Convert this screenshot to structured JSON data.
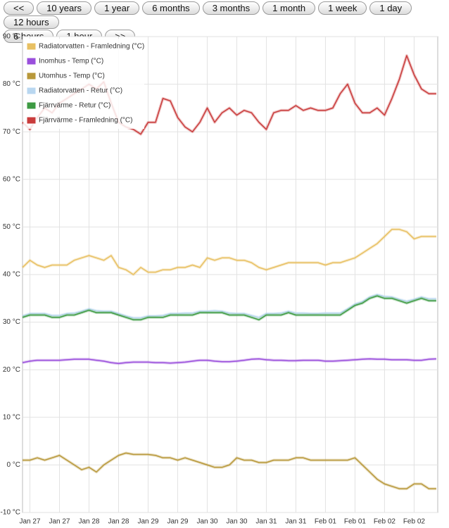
{
  "buttons": [
    "<<",
    "10 years",
    "1 year",
    "6 months",
    "3 months",
    "1 month",
    "1 week",
    "1 day",
    "12 hours",
    "6 hours",
    "1 hour",
    ">>"
  ],
  "chart_data": {
    "type": "line",
    "categories": [
      null,
      "Jan 27",
      null,
      null,
      null,
      "Jan 27",
      null,
      null,
      null,
      "Jan 28",
      null,
      null,
      null,
      "Jan 28",
      null,
      null,
      null,
      "Jan 29",
      null,
      null,
      null,
      "Jan 29",
      null,
      null,
      null,
      "Jan 30",
      null,
      null,
      null,
      "Jan 30",
      null,
      null,
      null,
      "Jan 31",
      null,
      null,
      null,
      "Jan 31",
      null,
      null,
      null,
      "Feb 01",
      null,
      null,
      null,
      "Feb 01",
      null,
      null,
      null,
      "Feb 02",
      null,
      null,
      null,
      "Feb 02",
      null,
      null,
      null
    ],
    "series": [
      {
        "name": "Radiatorvatten - Framledning (°C)",
        "color": "#e8c062",
        "values": [
          41.5,
          43,
          42,
          41.5,
          42,
          42,
          42,
          43,
          43.5,
          44,
          43.5,
          43,
          44,
          41.5,
          41,
          40,
          41.5,
          40.5,
          40.5,
          41,
          41,
          41.5,
          41.5,
          42,
          41.5,
          43.5,
          43,
          43.5,
          43.5,
          43,
          43,
          42.5,
          41.5,
          41,
          41.5,
          42,
          42.5,
          42.5,
          42.5,
          42.5,
          42.5,
          42,
          42.5,
          42.5,
          43,
          43.5,
          44.5,
          45.5,
          46.5,
          48,
          49.5,
          49.5,
          49,
          47.5,
          48,
          48,
          48
        ]
      },
      {
        "name": "Inomhus - Temp (°C)",
        "color": "#9a4fdc",
        "values": [
          21.5,
          21.8,
          22,
          22,
          22,
          22,
          22.1,
          22.2,
          22.2,
          22.2,
          22,
          21.8,
          21.5,
          21.3,
          21.5,
          21.6,
          21.6,
          21.6,
          21.5,
          21.5,
          21.4,
          21.5,
          21.6,
          21.8,
          22,
          22,
          21.8,
          21.7,
          21.7,
          21.8,
          22,
          22.2,
          22.3,
          22.1,
          22,
          22,
          21.9,
          21.9,
          22,
          22,
          22,
          21.8,
          21.8,
          21.9,
          22,
          22.1,
          22.2,
          22.3,
          22.2,
          22.2,
          22.1,
          22.1,
          22.1,
          22,
          22,
          22.2,
          22.3
        ]
      },
      {
        "name": "Utomhus - Temp (°C)",
        "color": "#b8983a",
        "values": [
          1,
          1,
          1.5,
          1,
          1.5,
          2,
          1,
          0,
          -1,
          -0.5,
          -1.5,
          0,
          1,
          2,
          2.5,
          2.2,
          2.2,
          2.2,
          2,
          1.5,
          1.5,
          1,
          1.5,
          1,
          0.5,
          0,
          -0.5,
          -0.5,
          0,
          1.5,
          1,
          1,
          0.5,
          0.5,
          1,
          1,
          1,
          1.5,
          1.5,
          1,
          1,
          1,
          1,
          1,
          1,
          1.5,
          0,
          -1.5,
          -3,
          -4,
          -4.5,
          -5,
          -5,
          -4,
          -4,
          -5,
          -5
        ]
      },
      {
        "name": "Radiatorvatten - Retur (°C)",
        "color": "#b9d7f0",
        "values": [
          31.3,
          31.8,
          31.8,
          31.8,
          31.4,
          31.4,
          31.8,
          31.9,
          32.3,
          32.8,
          32.4,
          32.3,
          32.3,
          31.8,
          31.3,
          30.9,
          30.9,
          31.3,
          31.3,
          31.4,
          31.8,
          31.8,
          31.9,
          31.9,
          32.3,
          32.3,
          32.4,
          32.3,
          31.9,
          31.8,
          31.8,
          31.4,
          31,
          31.8,
          31.8,
          31.9,
          32.3,
          31.9,
          31.9,
          31.8,
          31.8,
          31.9,
          31.9,
          31.9,
          32.8,
          33.8,
          34.3,
          35.3,
          35.8,
          35.4,
          35.3,
          34.8,
          34.4,
          34.8,
          35.3,
          34.9,
          34.9
        ]
      },
      {
        "name": "Fjärrvärme - Retur (°C)",
        "color": "#3d9a43",
        "values": [
          31,
          31.5,
          31.5,
          31.5,
          31,
          31,
          31.5,
          31.5,
          32,
          32.5,
          32,
          32,
          32,
          31.5,
          31,
          30.5,
          30.5,
          31,
          31,
          31,
          31.5,
          31.5,
          31.5,
          31.5,
          32,
          32,
          32,
          32,
          31.5,
          31.5,
          31.5,
          31,
          30.5,
          31.5,
          31.5,
          31.5,
          32,
          31.5,
          31.5,
          31.5,
          31.5,
          31.5,
          31.5,
          31.5,
          32.5,
          33.5,
          34,
          35,
          35.5,
          35,
          35,
          34.5,
          34,
          34.5,
          35,
          34.5,
          34.5
        ]
      },
      {
        "name": "Fjärrvärme - Framledning (°C)",
        "color": "#c93b3b",
        "values": [
          72,
          70.5,
          73,
          75,
          74,
          76,
          77,
          78,
          79,
          80,
          79,
          80.5,
          76,
          72,
          71,
          70.5,
          69.5,
          72,
          72,
          77,
          76.5,
          73,
          71,
          70,
          72,
          75,
          72,
          74,
          75,
          73.5,
          74.5,
          74,
          72,
          70.5,
          74,
          74.5,
          74.5,
          75.5,
          74.5,
          75,
          74.5,
          74.5,
          75,
          78,
          80,
          76,
          74,
          74,
          75,
          73.5,
          77,
          81,
          86,
          82,
          79,
          78,
          78
        ]
      }
    ],
    "ylim": [
      -10,
      90
    ],
    "yticks": [
      {
        "value": -10,
        "label": "-10 °C"
      },
      {
        "value": 0,
        "label": "0 °C"
      },
      {
        "value": 10,
        "label": "10 °C"
      },
      {
        "value": 20,
        "label": "20 °C"
      },
      {
        "value": 30,
        "label": "30 °C"
      },
      {
        "value": 40,
        "label": "40 °C"
      },
      {
        "value": 50,
        "label": "50 °C"
      },
      {
        "value": 60,
        "label": "60 °C"
      },
      {
        "value": 70,
        "label": "70 °C"
      },
      {
        "value": 80,
        "label": "80 °C"
      },
      {
        "value": 90,
        "label": "90 °C"
      }
    ],
    "grid": true,
    "legend": "top-left"
  }
}
